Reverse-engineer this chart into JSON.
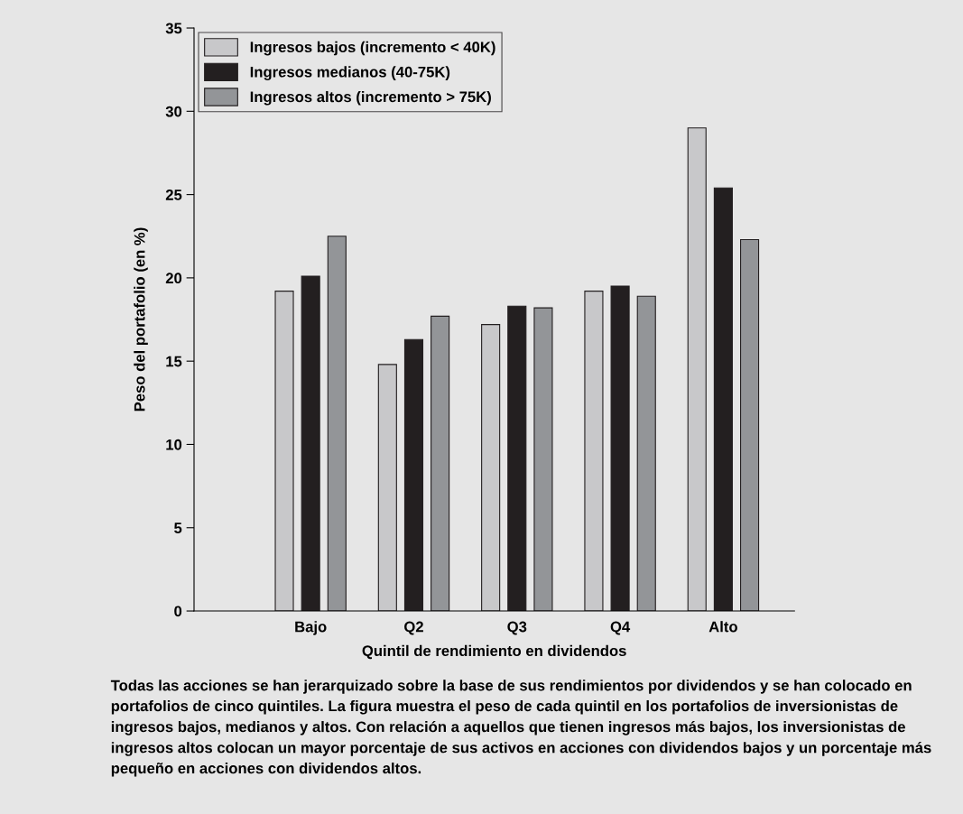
{
  "chart_data": {
    "type": "bar",
    "xlabel": "Quintil de rendimiento en dividendos",
    "ylabel": "Peso del portafolio (en %)",
    "categories": [
      "Bajo",
      "Q2",
      "Q3",
      "Q4",
      "Alto"
    ],
    "series": [
      {
        "name": "Ingresos bajos (incremento < 40K)",
        "color": "#c8c8ca",
        "values": [
          19.2,
          14.8,
          17.2,
          19.2,
          29.0
        ]
      },
      {
        "name": "Ingresos medianos (40-75K)",
        "color": "#231f20",
        "values": [
          20.1,
          16.3,
          18.3,
          19.5,
          25.4
        ]
      },
      {
        "name": "Ingresos altos (incremento > 75K)",
        "color": "#939598",
        "values": [
          22.5,
          17.7,
          18.2,
          18.9,
          22.3
        ]
      }
    ],
    "ylim": [
      0,
      35
    ],
    "yticks": [
      0,
      5,
      10,
      15,
      20,
      25,
      30,
      35
    ],
    "grid": false,
    "legend": "top left",
    "annotations": [
      "Todas las acciones se han jerarquizado sobre la base de sus rendimientos por dividendos y se han colocado en portafolios de cinco quintiles. La figura muestra el peso de cada quintil en los portafolios de inversionistas de ingresos bajos, medianos y altos. Con relación a aquellos que tienen ingresos más bajos, los inversionistas de ingresos altos colocan un mayor porcentaje de sus activos en acciones con dividendos bajos y un porcentaje más pequeño en acciones con dividendos altos."
    ]
  }
}
